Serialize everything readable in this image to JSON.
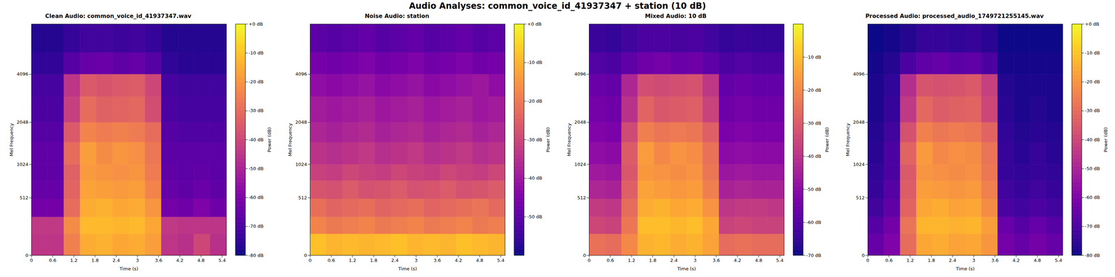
{
  "title": "Audio Analyses: common_voice_id_41937347 + station (10 dB)",
  "chart_data": [
    {
      "type": "heatmap",
      "title": "Clean Audio: common_voice_id_41937347.wav",
      "x_label": "Time (s)",
      "y_label": "Mel Frequency",
      "color": "plasma",
      "xlim": [
        0,
        5.52
      ],
      "ylim": [
        0,
        8000
      ],
      "xticks": [
        0,
        0.6,
        1.2,
        1.8,
        2.4,
        3,
        3.6,
        4.2,
        4.8,
        5.4
      ],
      "yticks": [
        0,
        512,
        1024,
        2048,
        4096
      ],
      "x_edges": [
        0,
        0.46,
        0.92,
        1.38,
        1.84,
        2.3,
        2.76,
        3.22,
        3.68,
        4.14,
        4.6,
        5.06,
        5.52
      ],
      "y_edges": [
        0,
        150,
        300,
        500,
        750,
        1024,
        1500,
        2048,
        3000,
        4096,
        5500,
        8000
      ],
      "z": [
        [
          -45,
          -45,
          -25,
          -15,
          -14,
          -16,
          -15,
          -18,
          -45,
          -46,
          -40,
          -46
        ],
        [
          -44,
          -44,
          -22,
          -12,
          -12,
          -13,
          -12,
          -16,
          -44,
          -45,
          -45,
          -45
        ],
        [
          -62,
          -62,
          -30,
          -15,
          -14,
          -16,
          -15,
          -20,
          -62,
          -63,
          -60,
          -63
        ],
        [
          -65,
          -65,
          -32,
          -17,
          -18,
          -19,
          -18,
          -24,
          -65,
          -66,
          -64,
          -66
        ],
        [
          -66,
          -66,
          -33,
          -19,
          -20,
          -21,
          -20,
          -26,
          -66,
          -67,
          -66,
          -67
        ],
        [
          -66,
          -66,
          -30,
          -18,
          -22,
          -20,
          -21,
          -27,
          -67,
          -67,
          -67,
          -67
        ],
        [
          -68,
          -68,
          -35,
          -24,
          -26,
          -25,
          -26,
          -30,
          -68,
          -69,
          -69,
          -69
        ],
        [
          -70,
          -70,
          -42,
          -30,
          -33,
          -32,
          -31,
          -38,
          -70,
          -71,
          -71,
          -71
        ],
        [
          -71,
          -71,
          -45,
          -35,
          -36,
          -35,
          -34,
          -40,
          -71,
          -72,
          -72,
          -72
        ],
        [
          -75,
          -75,
          -68,
          -65,
          -64,
          -66,
          -65,
          -68,
          -75,
          -76,
          -76,
          -76
        ],
        [
          -77,
          -77,
          -74,
          -72,
          -72,
          -73,
          -72,
          -74,
          -77,
          -77,
          -77,
          -77
        ]
      ],
      "colorbar": {
        "label": "Power (dB)",
        "range": [
          -80,
          0
        ],
        "ticks": [
          {
            "value": 0,
            "label": "+0 dB"
          },
          {
            "value": -10,
            "label": "-10 dB"
          },
          {
            "value": -20,
            "label": "-20 dB"
          },
          {
            "value": -30,
            "label": "-30 dB"
          },
          {
            "value": -40,
            "label": "-40 dB"
          },
          {
            "value": -50,
            "label": "-50 dB"
          },
          {
            "value": -60,
            "label": "-60 dB"
          },
          {
            "value": -70,
            "label": "-70 dB"
          },
          {
            "value": -80,
            "label": "-80 dB"
          }
        ]
      }
    },
    {
      "type": "heatmap",
      "title": "Noise Audio: station",
      "x_label": "Time (s)",
      "y_label": "Mel Frequency",
      "color": "plasma",
      "xlim": [
        0,
        5.52
      ],
      "ylim": [
        0,
        8000
      ],
      "xticks": [
        0,
        0.6,
        1.2,
        1.8,
        2.4,
        3,
        3.6,
        4.2,
        4.8,
        5.4
      ],
      "yticks": [
        0,
        512,
        1024,
        2048,
        4096
      ],
      "x_edges": [
        0,
        0.46,
        0.92,
        1.38,
        1.84,
        2.3,
        2.76,
        3.22,
        3.68,
        4.14,
        4.6,
        5.06,
        5.52
      ],
      "y_edges": [
        0,
        150,
        300,
        500,
        750,
        1024,
        1500,
        2048,
        3000,
        4096,
        5500,
        8000
      ],
      "z": [
        [
          -8,
          -10,
          -9,
          -10,
          -9,
          -8,
          -10,
          -9,
          -10,
          -8,
          -9,
          -10
        ],
        [
          -18,
          -20,
          -19,
          -18,
          -20,
          -19,
          -18,
          -20,
          -19,
          -18,
          -20,
          -19
        ],
        [
          -22,
          -24,
          -23,
          -22,
          -24,
          -23,
          -22,
          -24,
          -23,
          -22,
          -21,
          -23
        ],
        [
          -27,
          -28,
          -26,
          -28,
          -27,
          -26,
          -28,
          -27,
          -26,
          -28,
          -27,
          -26
        ],
        [
          -31,
          -32,
          -30,
          -31,
          -32,
          -30,
          -31,
          -32,
          -30,
          -31,
          -32,
          -30
        ],
        [
          -34,
          -35,
          -34,
          -33,
          -35,
          -34,
          -33,
          -35,
          -34,
          -33,
          -35,
          -34
        ],
        [
          -37,
          -38,
          -37,
          -36,
          -38,
          -37,
          -36,
          -38,
          -37,
          -36,
          -38,
          -37
        ],
        [
          -39,
          -40,
          -39,
          -38,
          -40,
          -39,
          -38,
          -40,
          -39,
          -38,
          -40,
          -39
        ],
        [
          -42,
          -43,
          -42,
          -41,
          -43,
          -42,
          -41,
          -43,
          -42,
          -41,
          -40,
          -42
        ],
        [
          -46,
          -47,
          -46,
          -45,
          -47,
          -46,
          -45,
          -47,
          -46,
          -45,
          -47,
          -46
        ],
        [
          -50,
          -51,
          -50,
          -49,
          -51,
          -50,
          -49,
          -51,
          -50,
          -49,
          -51,
          -50
        ]
      ],
      "colorbar": {
        "label": "Power (dB)",
        "range": [
          -60,
          0
        ],
        "ticks": [
          {
            "value": 0,
            "label": "+0 dB"
          },
          {
            "value": -10,
            "label": "-10 dB"
          },
          {
            "value": -20,
            "label": "-20 dB"
          },
          {
            "value": -30,
            "label": "-30 dB"
          },
          {
            "value": -40,
            "label": "-40 dB"
          },
          {
            "value": -50,
            "label": "-50 dB"
          }
        ]
      }
    },
    {
      "type": "heatmap",
      "title": "Mixed Audio: 10 dB",
      "x_label": "Time (s)",
      "y_label": "Mel Frequency",
      "color": "plasma",
      "xlim": [
        0,
        5.52
      ],
      "ylim": [
        0,
        8000
      ],
      "xticks": [
        0,
        0.6,
        1.2,
        1.8,
        2.4,
        3,
        3.6,
        4.2,
        4.8,
        5.4
      ],
      "yticks": [
        0,
        512,
        1024,
        2048,
        4096
      ],
      "x_edges": [
        0,
        0.46,
        0.92,
        1.38,
        1.84,
        2.3,
        2.76,
        3.22,
        3.68,
        4.14,
        4.6,
        5.06,
        5.52
      ],
      "y_edges": [
        0,
        150,
        300,
        500,
        750,
        1024,
        1500,
        2048,
        3000,
        4096,
        5500,
        8000
      ],
      "z": [
        [
          -25,
          -26,
          -20,
          -12,
          -11,
          -13,
          -12,
          -15,
          -26,
          -25,
          -26,
          -26
        ],
        [
          -35,
          -36,
          -24,
          -10,
          -10,
          -11,
          -10,
          -14,
          -36,
          -35,
          -36,
          -36
        ],
        [
          -38,
          -39,
          -26,
          -13,
          -12,
          -14,
          -13,
          -18,
          -39,
          -38,
          -38,
          -39
        ],
        [
          -43,
          -44,
          -29,
          -15,
          -16,
          -17,
          -16,
          -22,
          -44,
          -43,
          -44,
          -44
        ],
        [
          -46,
          -47,
          -31,
          -17,
          -18,
          -19,
          -18,
          -24,
          -47,
          -46,
          -47,
          -47
        ],
        [
          -49,
          -50,
          -30,
          -16,
          -20,
          -18,
          -19,
          -25,
          -50,
          -49,
          -50,
          -50
        ],
        [
          -52,
          -53,
          -34,
          -22,
          -24,
          -23,
          -24,
          -29,
          -53,
          -52,
          -53,
          -53
        ],
        [
          -54,
          -55,
          -40,
          -28,
          -31,
          -30,
          -29,
          -36,
          -55,
          -54,
          -55,
          -55
        ],
        [
          -56,
          -57,
          -43,
          -33,
          -34,
          -33,
          -32,
          -39,
          -57,
          -56,
          -57,
          -57
        ],
        [
          -60,
          -61,
          -58,
          -55,
          -54,
          -56,
          -55,
          -58,
          -61,
          -60,
          -61,
          -61
        ],
        [
          -64,
          -65,
          -63,
          -61,
          -61,
          -62,
          -61,
          -63,
          -65,
          -64,
          -65,
          -65
        ]
      ],
      "colorbar": {
        "label": "Power (dB)",
        "range": [
          -70,
          0
        ],
        "ticks": [
          {
            "value": -10,
            "label": "-10 dB"
          },
          {
            "value": -20,
            "label": "-20 dB"
          },
          {
            "value": -30,
            "label": "-30 dB"
          },
          {
            "value": -40,
            "label": "-40 dB"
          },
          {
            "value": -50,
            "label": "-50 dB"
          },
          {
            "value": -60,
            "label": "-60 dB"
          },
          {
            "value": -70,
            "label": "-70 dB"
          }
        ]
      }
    },
    {
      "type": "heatmap",
      "title": "Processed Audio: processed_audio_1749721255145.wav",
      "x_label": "Time (s)",
      "y_label": "Mel Frequency",
      "color": "plasma",
      "xlim": [
        0,
        5.52
      ],
      "ylim": [
        0,
        8000
      ],
      "xticks": [
        0,
        0.6,
        1.2,
        1.8,
        2.4,
        3,
        3.6,
        4.2,
        4.8,
        5.4
      ],
      "yticks": [
        0,
        512,
        1024,
        2048,
        4096
      ],
      "x_edges": [
        0,
        0.46,
        0.92,
        1.38,
        1.84,
        2.3,
        2.76,
        3.22,
        3.68,
        4.14,
        4.6,
        5.06,
        5.52
      ],
      "y_edges": [
        0,
        150,
        300,
        500,
        750,
        1024,
        1500,
        2048,
        3000,
        4096,
        5500,
        8000
      ],
      "z": [
        [
          -65,
          -60,
          -30,
          -16,
          -15,
          -17,
          -16,
          -20,
          -62,
          -65,
          -62,
          -65
        ],
        [
          -68,
          -62,
          -28,
          -13,
          -13,
          -14,
          -13,
          -18,
          -64,
          -68,
          -65,
          -68
        ],
        [
          -72,
          -66,
          -32,
          -16,
          -15,
          -17,
          -16,
          -22,
          -70,
          -72,
          -70,
          -72
        ],
        [
          -74,
          -68,
          -34,
          -18,
          -19,
          -20,
          -19,
          -25,
          -72,
          -74,
          -72,
          -74
        ],
        [
          -75,
          -70,
          -35,
          -20,
          -21,
          -22,
          -21,
          -27,
          -74,
          -75,
          -74,
          -75
        ],
        [
          -76,
          -70,
          -32,
          -19,
          -23,
          -21,
          -22,
          -28,
          -74,
          -76,
          -74,
          -76
        ],
        [
          -77,
          -72,
          -37,
          -25,
          -27,
          -26,
          -27,
          -32,
          -75,
          -77,
          -76,
          -77
        ],
        [
          -78,
          -74,
          -44,
          -31,
          -34,
          -33,
          -32,
          -40,
          -76,
          -78,
          -77,
          -78
        ],
        [
          -78,
          -75,
          -47,
          -36,
          -37,
          -36,
          -35,
          -42,
          -77,
          -78,
          -78,
          -78
        ],
        [
          -79,
          -77,
          -70,
          -66,
          -65,
          -67,
          -66,
          -70,
          -79,
          -79,
          -79,
          -79
        ],
        [
          -80,
          -79,
          -77,
          -74,
          -74,
          -75,
          -74,
          -76,
          -80,
          -80,
          -80,
          -80
        ]
      ],
      "colorbar": {
        "label": "Power (dB)",
        "range": [
          -80,
          0
        ],
        "ticks": [
          {
            "value": 0,
            "label": "+0 dB"
          },
          {
            "value": -10,
            "label": "-10 dB"
          },
          {
            "value": -20,
            "label": "-20 dB"
          },
          {
            "value": -30,
            "label": "-30 dB"
          },
          {
            "value": -40,
            "label": "-40 dB"
          },
          {
            "value": -50,
            "label": "-50 dB"
          },
          {
            "value": -60,
            "label": "-60 dB"
          },
          {
            "value": -70,
            "label": "-70 dB"
          },
          {
            "value": -80,
            "label": "-80 dB"
          }
        ]
      }
    }
  ]
}
